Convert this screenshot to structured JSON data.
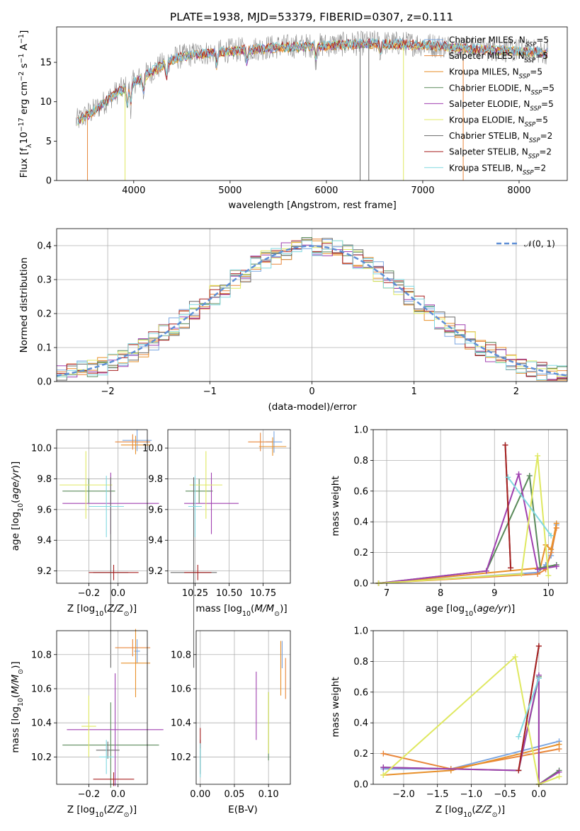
{
  "figure": {
    "title": "PLATE=1938, MJD=53379, FIBERID=0307, z=0.111"
  },
  "colors": [
    "#7aa5e0",
    "#e8863a",
    "#e8902a",
    "#5a8a5a",
    "#a040b0",
    "#dfe860",
    "#6a6a6a",
    "#a82020",
    "#80d8e0"
  ],
  "chart_data": [
    {
      "id": "spectrum",
      "type": "line",
      "xlabel": "wavelength [Angstrom, rest frame]",
      "ylabel": "Flux [f_λ10^-17 erg cm^-2 s^-1 A^-1]",
      "xlim": [
        3200,
        8500
      ],
      "ylim": [
        0,
        19.5
      ],
      "xticks": [
        4000,
        5000,
        6000,
        7000,
        8000
      ],
      "yticks": [
        0,
        5,
        10,
        15
      ],
      "grid": false,
      "legend_position": "right",
      "legend": [
        {
          "label": "Chabrier MILES, N",
          "sub": "SSP",
          "tail": "=5"
        },
        {
          "label": "Salpeter MILES, N",
          "sub": "SSP",
          "tail": "=5"
        },
        {
          "label": "Kroupa MILES, N",
          "sub": "SSP",
          "tail": "=5"
        },
        {
          "label": "Chabrier ELODIE, N",
          "sub": "SSP",
          "tail": "=5"
        },
        {
          "label": "Salpeter ELODIE, N",
          "sub": "SSP",
          "tail": "=5"
        },
        {
          "label": "Kroupa ELODIE, N",
          "sub": "SSP",
          "tail": "=5"
        },
        {
          "label": "Chabrier STELIB, N",
          "sub": "SSP",
          "tail": "=2"
        },
        {
          "label": "Salpeter STELIB, N",
          "sub": "SSP",
          "tail": "=2"
        },
        {
          "label": "Kroupa STELIB, N",
          "sub": "SSP",
          "tail": "=2"
        }
      ],
      "continuum": [
        [
          3400,
          7.5
        ],
        [
          3600,
          9
        ],
        [
          3800,
          11
        ],
        [
          4000,
          12.5
        ],
        [
          4200,
          14
        ],
        [
          4400,
          15.5
        ],
        [
          4600,
          16
        ],
        [
          5000,
          16.5
        ],
        [
          5500,
          17
        ],
        [
          6000,
          17.2
        ],
        [
          6500,
          17.5
        ],
        [
          7000,
          17.3
        ],
        [
          7500,
          16.8
        ],
        [
          8000,
          16.5
        ],
        [
          8300,
          16.3
        ]
      ]
    },
    {
      "id": "residuals",
      "type": "histogram",
      "xlabel": "(data-model)/error",
      "ylabel": "Normed distribution",
      "xlim": [
        -2.5,
        2.5
      ],
      "ylim": [
        0,
        0.45
      ],
      "xticks": [
        -2,
        -1,
        0,
        1,
        2
      ],
      "yticks": [
        0.0,
        0.1,
        0.2,
        0.3,
        0.4
      ],
      "grid": true,
      "legend": "𝒩(0, 1)",
      "legend_position": "top-right",
      "bin_width": 0.1
    },
    {
      "id": "age_vs_Z",
      "type": "errorbar",
      "xlabel": "Z [log10(Z/Z⊙)]",
      "ylabel": "age [log10(age/yr)]",
      "xlim": [
        -0.42,
        0.2
      ],
      "ylim": [
        9.12,
        10.12
      ],
      "xticks": [
        -0.2,
        0.0
      ],
      "yticks": [
        9.2,
        9.4,
        9.6,
        9.8,
        10.0
      ],
      "grid": true,
      "points": [
        {
          "c": 0,
          "x": 0.13,
          "y": 10.05,
          "xe": 0.1,
          "ye": 0.07
        },
        {
          "c": 1,
          "x": 0.1,
          "y": 10.04,
          "xe": 0.12,
          "ye": 0.05
        },
        {
          "c": 2,
          "x": 0.12,
          "y": 10.02,
          "xe": 0.1,
          "ye": 0.06
        },
        {
          "c": 3,
          "x": -0.2,
          "y": 9.72,
          "xe": 0.18,
          "ye": 0.08
        },
        {
          "c": 4,
          "x": -0.05,
          "y": 9.64,
          "xe": 0.33,
          "ye": 0.2
        },
        {
          "c": 5,
          "x": -0.22,
          "y": 9.76,
          "xe": 0.18,
          "ye": 0.22
        },
        {
          "c": 6,
          "x": -0.05,
          "y": 9.19,
          "xe": 0.12,
          "ye": 0.62
        },
        {
          "c": 7,
          "x": -0.03,
          "y": 9.19,
          "xe": 0.17,
          "ye": 0.05
        },
        {
          "c": 8,
          "x": -0.08,
          "y": 9.62,
          "xe": 0.12,
          "ye": 0.2
        }
      ]
    },
    {
      "id": "age_vs_mass",
      "type": "errorbar",
      "xlabel": "mass [log10(M/M⊙)]",
      "ylabel": "",
      "xlim": [
        10.05,
        10.95
      ],
      "ylim": [
        9.12,
        10.12
      ],
      "xticks": [
        10.25,
        10.5,
        10.75
      ],
      "yticks": [
        9.2,
        9.4,
        9.6,
        9.8,
        10.0
      ],
      "grid": true,
      "points": [
        {
          "c": 0,
          "x": 10.83,
          "y": 10.04,
          "xe": 0.06,
          "ye": 0.07
        },
        {
          "c": 1,
          "x": 10.73,
          "y": 10.04,
          "xe": 0.09,
          "ye": 0.06
        },
        {
          "c": 2,
          "x": 10.82,
          "y": 10.01,
          "xe": 0.1,
          "ye": 0.06
        },
        {
          "c": 3,
          "x": 10.28,
          "y": 9.72,
          "xe": 0.1,
          "ye": 0.08
        },
        {
          "c": 4,
          "x": 10.37,
          "y": 9.64,
          "xe": 0.2,
          "ye": 0.2
        },
        {
          "c": 5,
          "x": 10.33,
          "y": 9.76,
          "xe": 0.12,
          "ye": 0.22
        },
        {
          "c": 6,
          "x": 10.24,
          "y": 9.19,
          "xe": 0.17,
          "ye": 0.62
        },
        {
          "c": 7,
          "x": 10.27,
          "y": 9.19,
          "xe": 0.1,
          "ye": 0.05
        },
        {
          "c": 8,
          "x": 10.25,
          "y": 9.62,
          "xe": 0.05,
          "ye": 0.2
        }
      ]
    },
    {
      "id": "mw_vs_age",
      "type": "line",
      "xlabel": "age [log10(age/yr)]",
      "ylabel": "mass weight",
      "xlim": [
        6.75,
        10.35
      ],
      "ylim": [
        0,
        1
      ],
      "xticks": [
        7,
        8,
        9,
        10
      ],
      "yticks": [
        0.0,
        0.2,
        0.4,
        0.6,
        0.8,
        1.0
      ],
      "grid": true,
      "series": [
        {
          "c": 0,
          "x": [
            6.85,
            9.8,
            9.95,
            10.05,
            10.15
          ],
          "y": [
            0.0,
            0.07,
            0.12,
            0.18,
            0.38
          ]
        },
        {
          "c": 1,
          "x": [
            6.85,
            9.8,
            9.95,
            10.05,
            10.15
          ],
          "y": [
            0.0,
            0.06,
            0.09,
            0.2,
            0.36
          ]
        },
        {
          "c": 2,
          "x": [
            6.85,
            9.85,
            9.95,
            10.05,
            10.15
          ],
          "y": [
            0.0,
            0.1,
            0.25,
            0.22,
            0.39
          ]
        },
        {
          "c": 3,
          "x": [
            6.85,
            8.85,
            9.65,
            9.85,
            10.15
          ],
          "y": [
            0.0,
            0.08,
            0.7,
            0.1,
            0.12
          ]
        },
        {
          "c": 4,
          "x": [
            6.85,
            8.85,
            9.45,
            9.8,
            10.15
          ],
          "y": [
            0.0,
            0.08,
            0.71,
            0.09,
            0.11
          ]
        },
        {
          "c": 5,
          "x": [
            6.85,
            9.5,
            9.8,
            10.0
          ],
          "y": [
            0.0,
            0.06,
            0.83,
            0.05
          ]
        },
        {
          "c": 6,
          "x": [
            9.2,
            9.3
          ],
          "y": [
            0.9,
            0.1
          ]
        },
        {
          "c": 7,
          "x": [
            9.2,
            9.3
          ],
          "y": [
            0.9,
            0.1
          ]
        },
        {
          "c": 8,
          "x": [
            9.25,
            10.05
          ],
          "y": [
            0.69,
            0.31
          ]
        }
      ]
    },
    {
      "id": "mass_vs_Z",
      "type": "errorbar",
      "xlabel": "Z [log10(Z/Z⊙)]",
      "ylabel": "mass [log10(M/M⊙)]",
      "xlim": [
        -0.42,
        0.2
      ],
      "ylim": [
        10.04,
        10.94
      ],
      "xticks": [
        -0.2,
        0.0
      ],
      "yticks": [
        10.2,
        10.4,
        10.6,
        10.8
      ],
      "grid": true,
      "points": [
        {
          "c": 0,
          "x": 0.13,
          "y": 10.82,
          "xe": 0.02,
          "ye": 0.07
        },
        {
          "c": 1,
          "x": 0.1,
          "y": 10.84,
          "xe": 0.12,
          "ye": 0.05
        },
        {
          "c": 2,
          "x": 0.12,
          "y": 10.75,
          "xe": 0.1,
          "ye": 0.2
        },
        {
          "c": 3,
          "x": -0.05,
          "y": 10.27,
          "xe": 0.33,
          "ye": 0.25
        },
        {
          "c": 4,
          "x": -0.02,
          "y": 10.36,
          "xe": 0.33,
          "ye": 0.33
        },
        {
          "c": 5,
          "x": -0.2,
          "y": 10.38,
          "xe": 0.05,
          "ye": 0.18
        },
        {
          "c": 6,
          "x": -0.07,
          "y": 10.24,
          "xe": 0.08,
          "ye": 0.05
        },
        {
          "c": 7,
          "x": -0.03,
          "y": 10.07,
          "xe": 0.14,
          "ye": 0.04
        },
        {
          "c": 8,
          "x": -0.08,
          "y": 10.2,
          "xe": 0.05,
          "ye": 0.1
        }
      ]
    },
    {
      "id": "mass_vs_ebv",
      "type": "errorbar",
      "xlabel": "E(B-V)",
      "ylabel": "",
      "xlim": [
        -0.006,
        0.132
      ],
      "ylim": [
        10.04,
        10.94
      ],
      "xticks": [
        0.0,
        0.05,
        0.1
      ],
      "yticks": [
        10.2,
        10.4,
        10.6,
        10.8
      ],
      "grid": true,
      "points": [
        {
          "c": 0,
          "x": 0.12,
          "y": 10.8,
          "xe": 0,
          "ye": 0.08
        },
        {
          "c": 1,
          "x": 0.125,
          "y": 10.66,
          "xe": 0,
          "ye": 0.12
        },
        {
          "c": 2,
          "x": 0.118,
          "y": 10.72,
          "xe": 0,
          "ye": 0.16
        },
        {
          "c": 3,
          "x": 0.1,
          "y": 10.38,
          "xe": 0,
          "ye": 0.2
        },
        {
          "c": 4,
          "x": 0.082,
          "y": 10.5,
          "xe": 0,
          "ye": 0.2
        },
        {
          "c": 5,
          "x": 0.1,
          "y": 10.4,
          "xe": 0,
          "ye": 0.18
        },
        {
          "c": 6,
          "x": 0.0,
          "y": 10.2,
          "xe": 0,
          "ye": 0.1
        },
        {
          "c": 7,
          "x": 0.0,
          "y": 10.31,
          "xe": 0,
          "ye": 0.06
        },
        {
          "c": 8,
          "x": 0.0,
          "y": 10.18,
          "xe": 0,
          "ye": 0.1
        }
      ]
    },
    {
      "id": "mw_vs_Z",
      "type": "line",
      "xlabel": "Z [log10(Z/Z⊙)]",
      "ylabel": "mass weight",
      "xlim": [
        -2.45,
        0.42
      ],
      "ylim": [
        0,
        1
      ],
      "xticks": [
        -2.0,
        -1.5,
        -1.0,
        -0.5,
        0.0
      ],
      "yticks": [
        0.0,
        0.2,
        0.4,
        0.6,
        0.8,
        1.0
      ],
      "grid": true,
      "series": [
        {
          "c": 0,
          "x": [
            -2.3,
            -1.3,
            0.3
          ],
          "y": [
            0.1,
            0.1,
            0.28
          ]
        },
        {
          "c": 1,
          "x": [
            -2.3,
            -1.3,
            0.3
          ],
          "y": [
            0.2,
            0.1,
            0.23
          ]
        },
        {
          "c": 2,
          "x": [
            -2.3,
            -1.3,
            0.3
          ],
          "y": [
            0.06,
            0.09,
            0.26
          ]
        },
        {
          "c": 3,
          "x": [
            -2.3,
            -0.3,
            0.0,
            0.0,
            0.3
          ],
          "y": [
            0.11,
            0.09,
            0.7,
            0.0,
            0.09
          ]
        },
        {
          "c": 4,
          "x": [
            -2.3,
            -0.3,
            0.0,
            0.0,
            0.3
          ],
          "y": [
            0.11,
            0.09,
            0.71,
            0.0,
            0.08
          ]
        },
        {
          "c": 5,
          "x": [
            -2.3,
            -0.35,
            0.0,
            0.3
          ],
          "y": [
            0.06,
            0.83,
            0.0,
            0.05
          ]
        },
        {
          "c": 6,
          "x": [
            -0.3,
            0.0
          ],
          "y": [
            0.09,
            0.9
          ]
        },
        {
          "c": 7,
          "x": [
            -0.3,
            0.0
          ],
          "y": [
            0.09,
            0.9
          ]
        },
        {
          "c": 8,
          "x": [
            -0.3,
            0.0
          ],
          "y": [
            0.31,
            0.69
          ]
        }
      ]
    }
  ]
}
